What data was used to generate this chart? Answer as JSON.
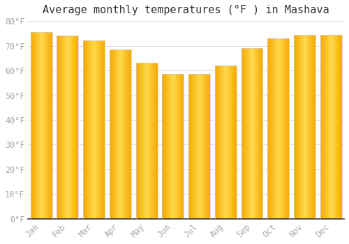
{
  "title": "Average monthly temperatures (°F ) in Mashava",
  "months": [
    "Jan",
    "Feb",
    "Mar",
    "Apr",
    "May",
    "Jun",
    "Jul",
    "Aug",
    "Sep",
    "Oct",
    "Nov",
    "Dec"
  ],
  "values": [
    75.5,
    74.0,
    72.0,
    68.5,
    63.0,
    58.5,
    58.5,
    62.0,
    69.0,
    73.0,
    74.5,
    74.5
  ],
  "bar_color_edge": "#F5A800",
  "bar_color_center": "#FFD84D",
  "bar_border_color": "#CCCCCC",
  "background_color": "#FFFFFF",
  "grid_color": "#DDDDDD",
  "ylim": [
    0,
    80
  ],
  "ytick_step": 10,
  "title_fontsize": 11,
  "tick_fontsize": 8.5,
  "tick_color": "#AAAAAA",
  "bottom_spine_color": "#333333"
}
